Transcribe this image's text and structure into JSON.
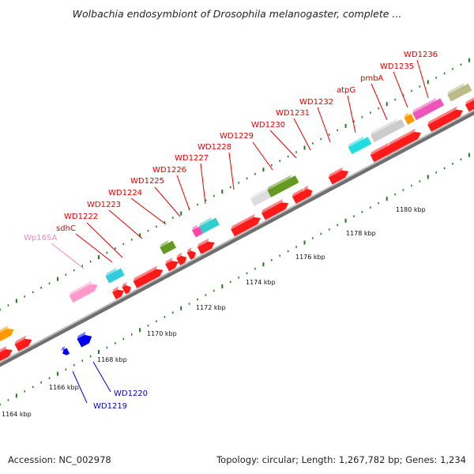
{
  "title": "Wolbachia endosymbiont of Drosophila melanogaster, complete ...",
  "footer": {
    "accession": "Accession: NC_002978",
    "summary": "Topology: circular; Length: 1,267,782 bp; Genes: 1,234"
  },
  "colors": {
    "forward_gene": "#ff0000",
    "reverse_gene": "#0000ee",
    "label_red": "#dd0000",
    "label_blue": "#0000cc",
    "label_pink": "#ee88bb",
    "backbone": "#888888",
    "tick": "#227722"
  },
  "scale_labels": [
    "1164 kbp",
    "1166 kbp",
    "1168 kbp",
    "1170 kbp",
    "1172 kbp",
    "1174 kbp",
    "1176 kbp",
    "1178 kbp",
    "1180 kbp"
  ],
  "gene_labels": [
    {
      "text": "WD1219",
      "color": "blue"
    },
    {
      "text": "WD1220",
      "color": "blue"
    },
    {
      "text": "Wp16SA",
      "color": "pink"
    },
    {
      "text": "sdhC",
      "color": "red"
    },
    {
      "text": "WD1222",
      "color": "red"
    },
    {
      "text": "WD1223",
      "color": "red"
    },
    {
      "text": "WD1224",
      "color": "red"
    },
    {
      "text": "WD1225",
      "color": "red"
    },
    {
      "text": "WD1226",
      "color": "red"
    },
    {
      "text": "WD1227",
      "color": "red"
    },
    {
      "text": "WD1228",
      "color": "red"
    },
    {
      "text": "WD1229",
      "color": "red"
    },
    {
      "text": "WD1230",
      "color": "red"
    },
    {
      "text": "WD1231",
      "color": "red"
    },
    {
      "text": "WD1232",
      "color": "red"
    },
    {
      "text": "atpG",
      "color": "red"
    },
    {
      "text": "pmbA",
      "color": "red"
    },
    {
      "text": "WD1235",
      "color": "red"
    },
    {
      "text": "WD1236",
      "color": "red"
    }
  ]
}
